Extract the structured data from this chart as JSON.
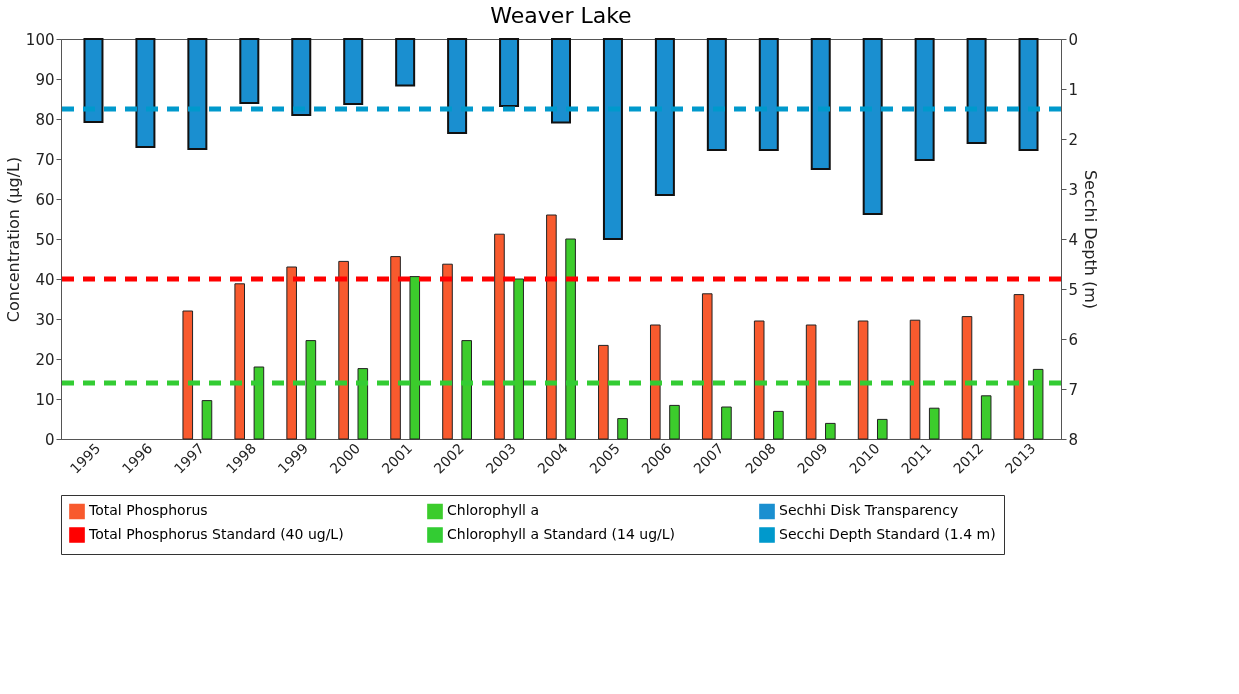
{
  "chart_data": {
    "type": "bar",
    "title": "Weaver Lake",
    "ylabel": "Concentration (µg/L)",
    "y2label": "Secchi Depth (m)",
    "categories": [
      "1995",
      "1996",
      "1997",
      "1998",
      "1999",
      "2000",
      "2001",
      "2002",
      "2003",
      "2004",
      "2005",
      "2006",
      "2007",
      "2008",
      "2009",
      "2010",
      "2011",
      "2012",
      "2013"
    ],
    "series": [
      {
        "name": "Total Phosphorus",
        "color": "#f85a2e",
        "values": [
          null,
          null,
          32,
          38.8,
          43,
          44.4,
          45.6,
          43.7,
          51.2,
          56,
          23.4,
          28.5,
          36.3,
          29.5,
          28.5,
          29.5,
          29.7,
          30.6,
          36.1
        ]
      },
      {
        "name": "Chlorophyll a",
        "color": "#3ccc2c",
        "values": [
          null,
          null,
          9.6,
          18,
          24.6,
          17.6,
          40.6,
          24.6,
          40,
          50,
          5.1,
          8.4,
          8,
          6.9,
          3.9,
          4.9,
          7.7,
          10.8,
          17.4
        ]
      },
      {
        "name": "Sechhi Disk Transparency",
        "color": "#1a8fd0",
        "axis": "y2",
        "values": [
          1.66,
          2.16,
          2.2,
          1.28,
          1.52,
          1.3,
          0.93,
          1.88,
          1.34,
          1.67,
          4.0,
          3.12,
          2.22,
          2.22,
          2.6,
          3.5,
          2.42,
          2.08,
          2.22
        ]
      }
    ],
    "ylim": [
      0,
      100
    ],
    "yticks": [
      0,
      10,
      20,
      30,
      40,
      50,
      60,
      70,
      80,
      90,
      100
    ],
    "y2lim": [
      8,
      0
    ],
    "y2ticks": [
      0,
      1,
      2,
      3,
      4,
      5,
      6,
      7,
      8
    ],
    "ref_lines": [
      {
        "axis": "y",
        "value": 40,
        "label": "Total Phosphorus Standard (40 ug/L)",
        "color": "#ff0000",
        "line_style": "dashed"
      },
      {
        "axis": "y",
        "value": 14,
        "label": "Chlorophyll a Standard (14 ug/L)",
        "color": "#33cc33",
        "line_style": "dashed"
      },
      {
        "axis": "y2",
        "value": 1.4,
        "label": "Secchi Depth Standard (1.4 m)",
        "color": "#0099cc",
        "line_style": "dashed"
      }
    ],
    "grid": false,
    "legend": "bottom"
  }
}
